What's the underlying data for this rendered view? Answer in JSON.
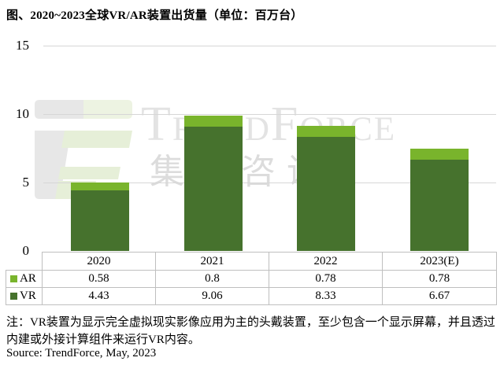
{
  "title": "图、2020~2023全球VR/AR装置出货量（单位：百万台）",
  "watermark": {
    "logo": "trendforce-logo",
    "text_en": "TrendForce",
    "text_cn": "集邦咨询"
  },
  "chart_data": {
    "type": "bar",
    "stacked": true,
    "categories": [
      "2020",
      "2021",
      "2022",
      "2023(E)"
    ],
    "series": [
      {
        "name": "AR",
        "color": "#79b42c",
        "values": [
          0.58,
          0.8,
          0.78,
          0.78
        ]
      },
      {
        "name": "VR",
        "color": "#46722d",
        "values": [
          4.43,
          9.06,
          8.33,
          6.67
        ]
      }
    ],
    "title": "图、2020~2023全球VR/AR装置出货量（单位：百万台）",
    "unit": "百万台",
    "xlabel": "",
    "ylabel": "",
    "ylim": [
      0,
      15
    ],
    "yticks": [
      0,
      5,
      10,
      15
    ],
    "grid": true,
    "legend_position": "table-left"
  },
  "table": {
    "header": [
      "2020",
      "2021",
      "2022",
      "2023(E)"
    ],
    "rows": [
      {
        "label": "AR",
        "color": "#79b42c",
        "values": [
          "0.58",
          "0.8",
          "0.78",
          "0.78"
        ]
      },
      {
        "label": "VR",
        "color": "#46722d",
        "values": [
          "4.43",
          "9.06",
          "8.33",
          "6.67"
        ]
      }
    ]
  },
  "notes": {
    "line1": "注：VR装置为显示完全虚拟现实影像应用为主的头戴装置，至少包含一个显示屏幕，并且透过",
    "line2": "内建或外接计算组件来运行VR内容。",
    "source": "Source: TrendForce, May, 2023"
  },
  "colors": {
    "ar": "#79b42c",
    "vr": "#46722d",
    "gridline": "#d6d6d6",
    "table_border": "#bfbfbf",
    "watermark_gray": "#e3e3e3"
  }
}
